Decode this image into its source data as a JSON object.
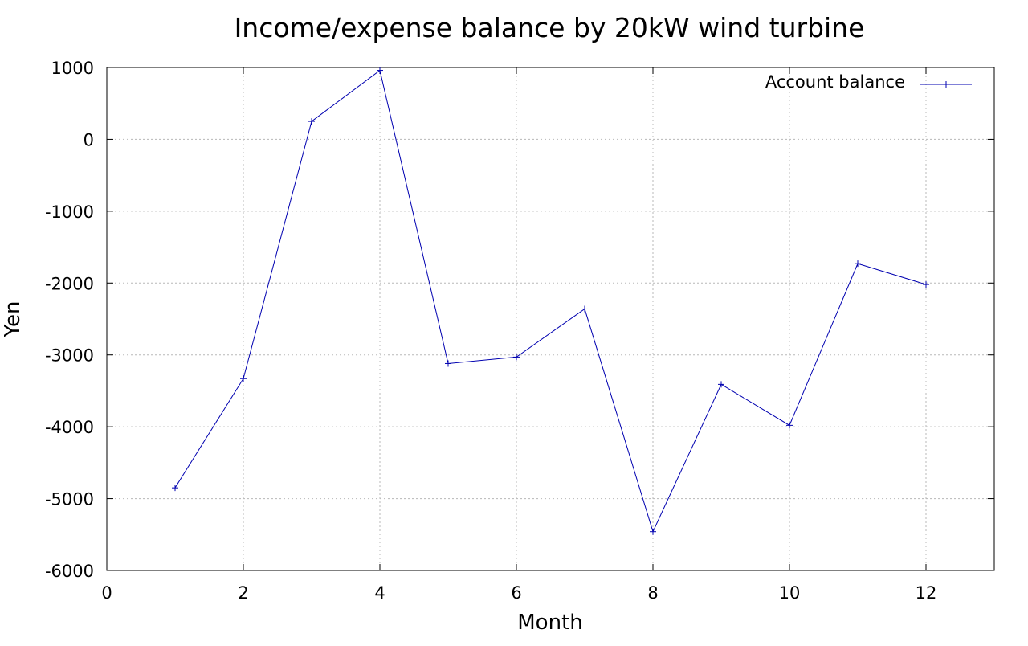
{
  "chart_data": {
    "type": "line",
    "title": "Income/expense balance by 20kW wind turbine",
    "xlabel": "Month",
    "ylabel": "Yen",
    "xlim": [
      0,
      13
    ],
    "ylim": [
      -6000,
      1000
    ],
    "x_ticks": [
      0,
      2,
      4,
      6,
      8,
      10,
      12
    ],
    "y_ticks": [
      1000,
      0,
      -1000,
      -2000,
      -3000,
      -4000,
      -5000,
      -6000
    ],
    "grid": true,
    "legend_position": "top-right",
    "series": [
      {
        "name": "Account balance",
        "color": "#0000b0",
        "marker": "plus",
        "x": [
          1,
          2,
          3,
          4,
          5,
          6,
          7,
          8,
          9,
          10,
          11,
          12
        ],
        "y": [
          -4850,
          -3330,
          250,
          960,
          -3120,
          -3030,
          -2360,
          -5460,
          -3410,
          -3980,
          -1730,
          -2020
        ]
      }
    ]
  }
}
